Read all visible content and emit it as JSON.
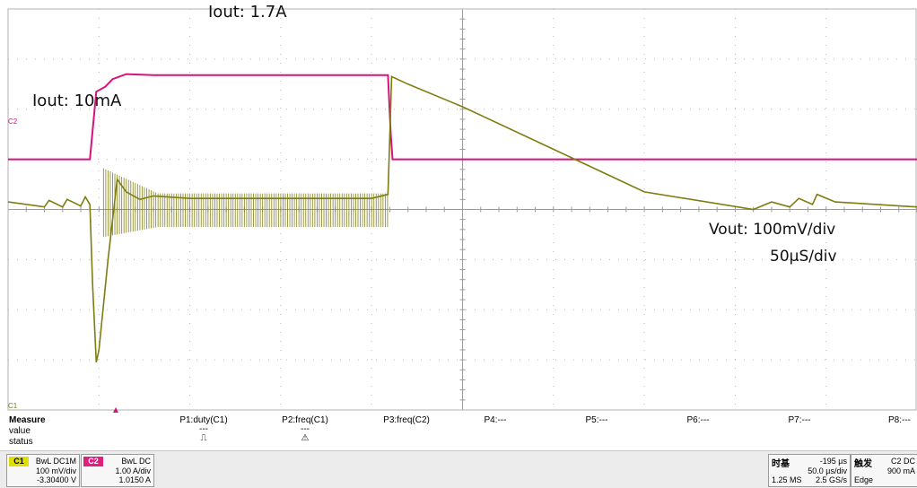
{
  "annotations": {
    "iout_high": "Iout: 1.7A",
    "iout_low": "Iout: 10mA",
    "vout_scale": "Vout: 100mV/div",
    "time_scale": "50µS/div"
  },
  "channel_markers": {
    "c2": "C2",
    "c1": "C1"
  },
  "colors": {
    "c1_trace": "#7f7c10",
    "c2_trace": "#d4147c",
    "grid": "#b8b8b8",
    "c1_tag": "#dede00",
    "c2_tag": "#e0207e"
  },
  "measure": {
    "title": "Measure",
    "row_labels": [
      "value",
      "status"
    ],
    "columns": [
      {
        "param": "P1:duty(C1)",
        "value": "---",
        "status": "⎍"
      },
      {
        "param": "P2:freq(C1)",
        "value": "---",
        "status": "⚠"
      },
      {
        "param": "P3:freq(C2)",
        "value": "",
        "status": ""
      },
      {
        "param": "P4:---",
        "value": "",
        "status": ""
      },
      {
        "param": "P5:---",
        "value": "",
        "status": ""
      },
      {
        "param": "P6:---",
        "value": "",
        "status": ""
      },
      {
        "param": "P7:---",
        "value": "",
        "status": ""
      },
      {
        "param": "P8:---",
        "value": "",
        "status": ""
      }
    ]
  },
  "channels": [
    {
      "tag": "C1",
      "mode": "BwL DC1M",
      "scale": "100 mV/div",
      "offset": "-3.30400 V"
    },
    {
      "tag": "C2",
      "mode": "BwL DC",
      "scale": "1.00 A/div",
      "offset": "1.0150 A"
    }
  ],
  "timebase": {
    "label": "时基",
    "delay": "-195 µs",
    "scale": "50.0 µs/div",
    "samples": "1.25 MS",
    "rate": "2.5 GS/s"
  },
  "trigger": {
    "label": "触发",
    "source": "C2 DC",
    "level": "900 mA",
    "type": "Edge"
  },
  "chart_data": {
    "type": "line",
    "title": "",
    "xlabel": "",
    "ylabel": "",
    "x_divisions": 10,
    "y_divisions": 8,
    "series": [
      {
        "name": "",
        "points": [
          [
            0,
            1.0
          ],
          [
            0.9,
            1.0
          ],
          [
            0.97,
            2.35
          ],
          [
            1.07,
            2.45
          ],
          [
            1.15,
            2.6
          ],
          [
            1.3,
            2.7
          ],
          [
            1.6,
            2.68
          ],
          [
            2.0,
            2.68
          ],
          [
            3.0,
            2.68
          ],
          [
            4.0,
            2.68
          ],
          [
            4.18,
            2.68
          ],
          [
            4.21,
            1.5
          ],
          [
            4.23,
            1.0
          ],
          [
            10,
            1.0
          ]
        ]
      },
      {
        "name": "",
        "points": [
          [
            0,
            0.15
          ],
          [
            0.4,
            0.05
          ],
          [
            0.45,
            0.18
          ],
          [
            0.6,
            0.05
          ],
          [
            0.65,
            0.2
          ],
          [
            0.8,
            0.07
          ],
          [
            0.85,
            0.25
          ],
          [
            0.9,
            0.1
          ],
          [
            0.93,
            -1.5
          ],
          [
            0.97,
            -3.05
          ],
          [
            1.0,
            -2.8
          ],
          [
            1.1,
            -1.0
          ],
          [
            1.2,
            0.6
          ],
          [
            1.3,
            0.35
          ],
          [
            1.45,
            0.2
          ],
          [
            1.6,
            0.27
          ],
          [
            2.0,
            0.22
          ],
          [
            3.0,
            0.22
          ],
          [
            4.0,
            0.22
          ],
          [
            4.18,
            0.3
          ],
          [
            4.22,
            2.65
          ],
          [
            4.4,
            2.5
          ],
          [
            5.0,
            2.05
          ],
          [
            6.0,
            1.2
          ],
          [
            7.0,
            0.35
          ],
          [
            8.2,
            0.0
          ],
          [
            8.4,
            0.15
          ],
          [
            8.6,
            0.05
          ],
          [
            8.7,
            0.22
          ],
          [
            8.85,
            0.1
          ],
          [
            8.9,
            0.3
          ],
          [
            9.1,
            0.15
          ],
          [
            10,
            0.05
          ]
        ]
      }
    ]
  }
}
